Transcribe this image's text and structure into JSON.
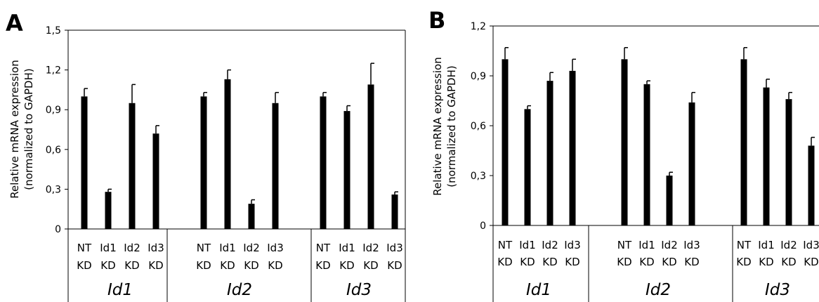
{
  "chart_data": [
    {
      "type": "bar",
      "panel_label": "A",
      "ylabel": [
        "Relative mRNA expression",
        "(normalized to GAPDH)"
      ],
      "ylim": [
        0,
        1.5
      ],
      "yticks": [
        "0",
        "0,3",
        "0,6",
        "0,9",
        "1,2",
        "1,5"
      ],
      "groups": [
        {
          "label": "Id1",
          "categories": [
            [
              "NT",
              "KD"
            ],
            [
              "Id1",
              "KD"
            ],
            [
              "Id2",
              "KD"
            ],
            [
              "Id3",
              "KD"
            ]
          ],
          "values": [
            1.0,
            0.28,
            0.95,
            0.72
          ],
          "errors": [
            0.06,
            0.02,
            0.14,
            0.06
          ]
        },
        {
          "label": "Id2",
          "categories": [
            [
              "NT",
              "KD"
            ],
            [
              "Id1",
              "KD"
            ],
            [
              "Id2",
              "KD"
            ],
            [
              "Id3",
              "KD"
            ]
          ],
          "values": [
            1.0,
            1.13,
            0.19,
            0.95
          ],
          "errors": [
            0.03,
            0.07,
            0.03,
            0.08
          ]
        },
        {
          "label": "Id3",
          "categories": [
            [
              "NT",
              "KD"
            ],
            [
              "Id1",
              "KD"
            ],
            [
              "Id2",
              "KD"
            ],
            [
              "Id3",
              "KD"
            ]
          ],
          "values": [
            1.0,
            0.89,
            1.09,
            0.26
          ],
          "errors": [
            0.03,
            0.04,
            0.16,
            0.02
          ]
        }
      ]
    },
    {
      "type": "bar",
      "panel_label": "B",
      "ylabel": [
        "Relative mRNA expression",
        "(normalized to GAPDH)"
      ],
      "ylim": [
        0,
        1.2
      ],
      "yticks": [
        "0",
        "0,3",
        "0,6",
        "0,9",
        "1,2"
      ],
      "groups": [
        {
          "label": "Id1",
          "categories": [
            [
              "NT",
              "KD"
            ],
            [
              "Id1",
              "KD"
            ],
            [
              "Id2",
              "KD"
            ],
            [
              "Id3",
              "KD"
            ]
          ],
          "values": [
            1.0,
            0.7,
            0.87,
            0.93
          ],
          "errors": [
            0.07,
            0.02,
            0.05,
            0.07
          ]
        },
        {
          "label": "Id2",
          "categories": [
            [
              "NT",
              "KD"
            ],
            [
              "Id1",
              "KD"
            ],
            [
              "Id2",
              "KD"
            ],
            [
              "Id3",
              "KD"
            ]
          ],
          "values": [
            1.0,
            0.85,
            0.3,
            0.74
          ],
          "errors": [
            0.07,
            0.02,
            0.02,
            0.06
          ]
        },
        {
          "label": "Id3",
          "categories": [
            [
              "NT",
              "KD"
            ],
            [
              "Id1",
              "KD"
            ],
            [
              "Id2",
              "KD"
            ],
            [
              "Id3",
              "KD"
            ]
          ],
          "values": [
            1.0,
            0.83,
            0.76,
            0.48
          ],
          "errors": [
            0.07,
            0.05,
            0.04,
            0.05
          ]
        }
      ]
    }
  ]
}
